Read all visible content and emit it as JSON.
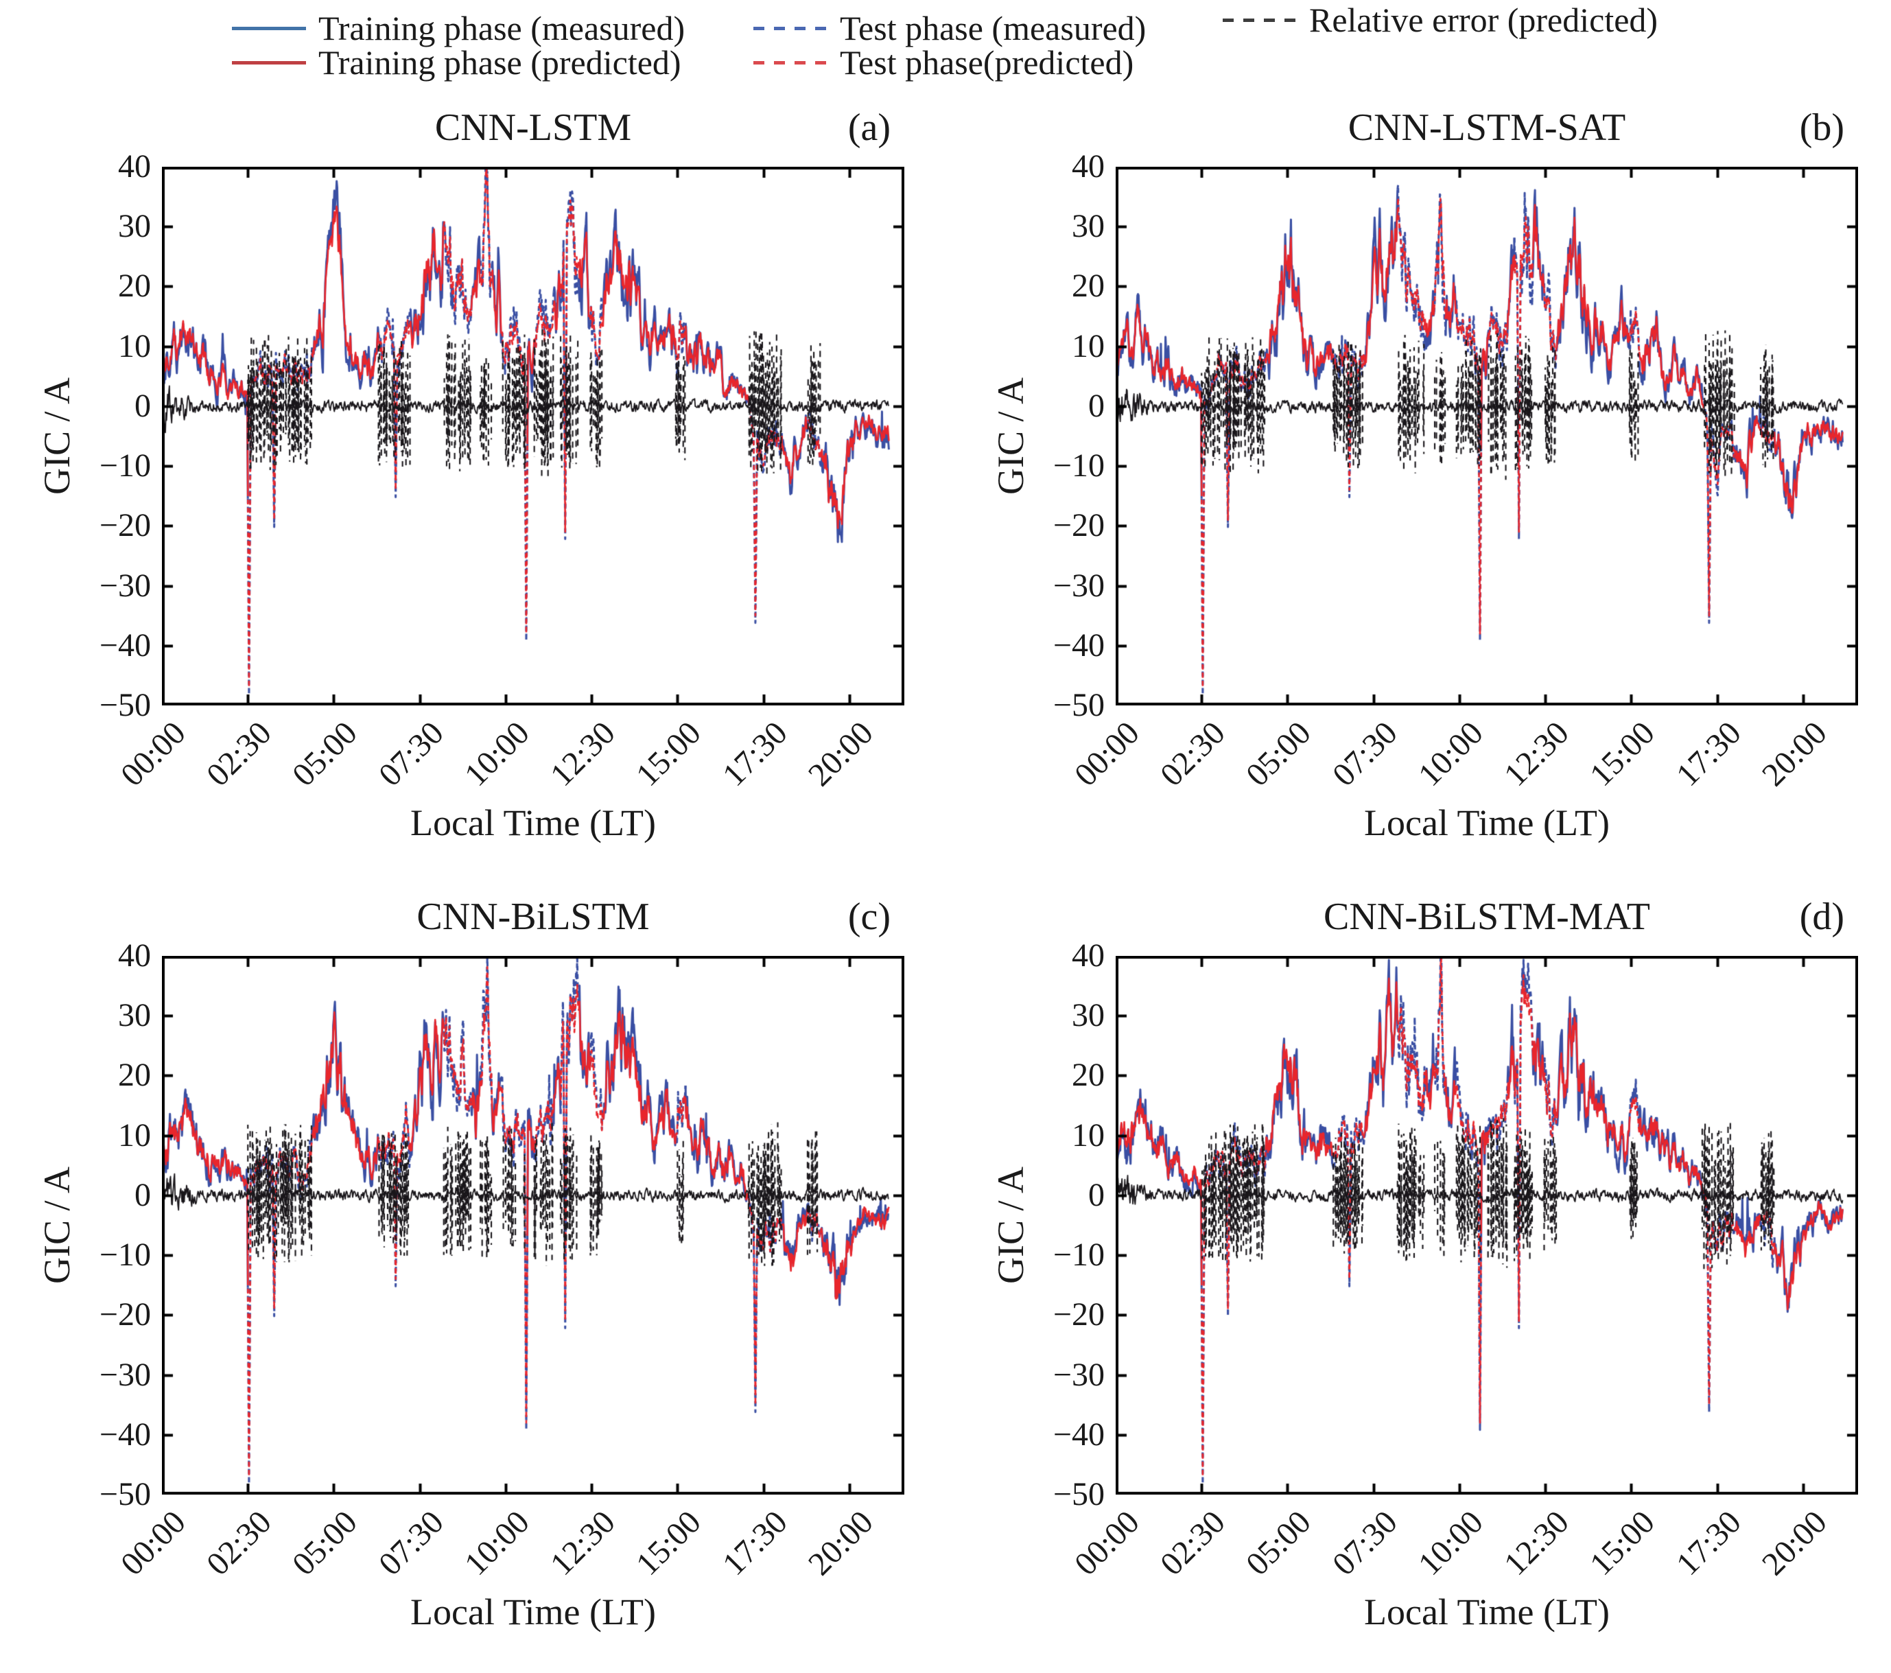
{
  "legend": {
    "items": [
      {
        "label": "Training phase (measured)",
        "color": "#4273a8",
        "style": "solid"
      },
      {
        "label": "Training phase (predicted)",
        "color": "#bf4043",
        "style": "solid"
      },
      {
        "label": "Test phase (measured)",
        "color": "#4a68b2",
        "style": "dashed"
      },
      {
        "label": "Test phase(predicted)",
        "color": "#db4a4e",
        "style": "dashed"
      },
      {
        "label": "Relative error (predicted)",
        "color": "#3d3d3d",
        "style": "dashed"
      }
    ]
  },
  "chart_data": {
    "type": "line",
    "xlabel": "Local Time (LT)",
    "ylabel": "GIC / A",
    "ylim": [
      -50,
      40
    ],
    "y_tick_values": [
      40,
      30,
      20,
      10,
      0,
      -10,
      -20,
      -30,
      -40,
      -50
    ],
    "y_tick_labels": [
      "40",
      "30",
      "20",
      "10",
      "0",
      "−10",
      "−20",
      "−30",
      "−40",
      "−50"
    ],
    "x_tick_labels": [
      "00:00",
      "02:30",
      "05:00",
      "07:30",
      "10:00",
      "12:30",
      "15:00",
      "17:30",
      "20:00"
    ],
    "x_tick_minutes": [
      0,
      150,
      300,
      450,
      600,
      750,
      900,
      1050,
      1200
    ],
    "x_axis_max_minutes": 1296,
    "data_end_minute": 1270,
    "grid": false,
    "legend_position": "top",
    "colors": {
      "measured": "#3a4fa3",
      "predicted": "#e8262c",
      "error": "#19161a"
    },
    "series": [
      {
        "name": "Training phase (measured)",
        "color": "#3a4fa3",
        "style": "solid"
      },
      {
        "name": "Training phase (predicted)",
        "color": "#e8262c",
        "style": "solid"
      },
      {
        "name": "Test phase (measured)",
        "color": "#3a4fa3",
        "style": "dashed"
      },
      {
        "name": "Test phase(predicted)",
        "color": "#e8262c",
        "style": "dashed"
      },
      {
        "name": "Relative error (predicted)",
        "color": "#19161a",
        "style": "dashed"
      }
    ],
    "panels": [
      {
        "title": "CNN-LSTM",
        "panel_label": "(a)",
        "seed": 101
      },
      {
        "title": "CNN-LSTM-SAT",
        "panel_label": "(b)",
        "seed": 202
      },
      {
        "title": "CNN-BiLSTM",
        "panel_label": "(c)",
        "seed": 303
      },
      {
        "title": "CNN-BiLSTM-MAT",
        "panel_label": "(d)",
        "seed": 404
      }
    ],
    "profile": {
      "description": "GIC time series envelope anchors [minute, amperes]; measured and predicted follow this with noise; relative error is near zero with large excursions during test windows",
      "gic_anchors": [
        [
          0,
          8
        ],
        [
          15,
          10
        ],
        [
          40,
          12
        ],
        [
          60,
          9
        ],
        [
          80,
          7
        ],
        [
          100,
          5
        ],
        [
          120,
          4
        ],
        [
          140,
          3
        ],
        [
          152,
          2
        ],
        [
          165,
          3
        ],
        [
          180,
          6
        ],
        [
          196,
          4
        ],
        [
          210,
          7
        ],
        [
          222,
          5
        ],
        [
          234,
          6
        ],
        [
          246,
          4
        ],
        [
          258,
          7
        ],
        [
          268,
          10
        ],
        [
          278,
          16
        ],
        [
          290,
          21
        ],
        [
          300,
          27
        ],
        [
          308,
          23
        ],
        [
          316,
          17
        ],
        [
          326,
          12
        ],
        [
          336,
          9
        ],
        [
          346,
          7
        ],
        [
          356,
          8
        ],
        [
          366,
          6
        ],
        [
          376,
          9
        ],
        [
          386,
          7
        ],
        [
          396,
          10
        ],
        [
          406,
          8
        ],
        [
          416,
          7
        ],
        [
          426,
          11
        ],
        [
          436,
          9
        ],
        [
          446,
          15
        ],
        [
          453,
          21
        ],
        [
          460,
          26
        ],
        [
          468,
          23
        ],
        [
          476,
          28
        ],
        [
          484,
          25
        ],
        [
          492,
          31
        ],
        [
          500,
          27
        ],
        [
          508,
          22
        ],
        [
          516,
          19
        ],
        [
          524,
          21
        ],
        [
          532,
          16
        ],
        [
          540,
          18
        ],
        [
          548,
          15
        ],
        [
          556,
          17
        ],
        [
          562,
          24
        ],
        [
          568,
          36
        ],
        [
          574,
          22
        ],
        [
          581,
          13
        ],
        [
          590,
          16
        ],
        [
          600,
          12
        ],
        [
          610,
          10
        ],
        [
          618,
          13
        ],
        [
          626,
          10
        ],
        [
          634,
          8
        ],
        [
          642,
          11
        ],
        [
          650,
          9
        ],
        [
          658,
          13
        ],
        [
          666,
          11
        ],
        [
          674,
          15
        ],
        [
          682,
          12
        ],
        [
          690,
          17
        ],
        [
          698,
          22
        ],
        [
          706,
          27
        ],
        [
          714,
          31
        ],
        [
          722,
          26
        ],
        [
          730,
          28
        ],
        [
          738,
          23
        ],
        [
          746,
          19
        ],
        [
          754,
          15
        ],
        [
          762,
          11
        ],
        [
          770,
          13
        ],
        [
          778,
          17
        ],
        [
          786,
          21
        ],
        [
          794,
          25
        ],
        [
          802,
          27
        ],
        [
          810,
          24
        ],
        [
          818,
          20
        ],
        [
          826,
          17
        ],
        [
          834,
          14
        ],
        [
          842,
          12
        ],
        [
          850,
          14
        ],
        [
          858,
          11
        ],
        [
          866,
          9
        ],
        [
          874,
          11
        ],
        [
          882,
          13
        ],
        [
          890,
          10
        ],
        [
          900,
          12
        ],
        [
          910,
          14
        ],
        [
          918,
          10
        ],
        [
          926,
          8
        ],
        [
          934,
          10
        ],
        [
          942,
          12
        ],
        [
          950,
          9
        ],
        [
          958,
          7
        ],
        [
          966,
          5
        ],
        [
          974,
          7
        ],
        [
          982,
          4
        ],
        [
          990,
          6
        ],
        [
          998,
          3
        ],
        [
          1006,
          2
        ],
        [
          1014,
          4
        ],
        [
          1022,
          1
        ],
        [
          1030,
          -2
        ],
        [
          1040,
          -6
        ],
        [
          1050,
          -9
        ],
        [
          1060,
          -7
        ],
        [
          1070,
          -5
        ],
        [
          1080,
          -6
        ],
        [
          1090,
          -8
        ],
        [
          1100,
          -10
        ],
        [
          1110,
          -7
        ],
        [
          1120,
          -4
        ],
        [
          1130,
          -3
        ],
        [
          1140,
          -5
        ],
        [
          1150,
          -7
        ],
        [
          1160,
          -10
        ],
        [
          1170,
          -14
        ],
        [
          1180,
          -17
        ],
        [
          1190,
          -12
        ],
        [
          1200,
          -7
        ],
        [
          1210,
          -5
        ],
        [
          1220,
          -4
        ],
        [
          1230,
          -3
        ],
        [
          1245,
          -4
        ],
        [
          1270,
          -4
        ]
      ],
      "deep_spikes": [
        {
          "t": 152,
          "v": -47
        },
        {
          "t": 196,
          "v": -19
        },
        {
          "t": 408,
          "v": -14
        },
        {
          "t": 636,
          "v": -38
        },
        {
          "t": 704,
          "v": -21
        },
        {
          "t": 1036,
          "v": -35
        }
      ],
      "error_bursts": [
        [
          150,
          262,
          12
        ],
        [
          378,
          434,
          11
        ],
        [
          492,
          540,
          12
        ],
        [
          556,
          576,
          11
        ],
        [
          594,
          638,
          12
        ],
        [
          650,
          684,
          13
        ],
        [
          696,
          728,
          12
        ],
        [
          748,
          770,
          11
        ],
        [
          897,
          914,
          10
        ],
        [
          1024,
          1082,
          13
        ],
        [
          1126,
          1150,
          11
        ]
      ],
      "base_error_noise_amp": 0.9,
      "early_error_noise": {
        "until_minute": 70,
        "amp": 2.6
      }
    }
  }
}
